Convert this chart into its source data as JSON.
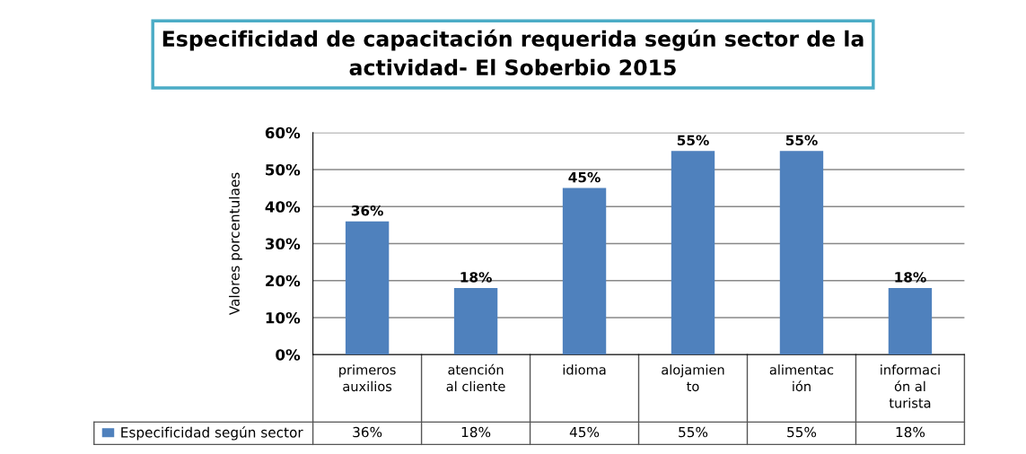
{
  "chart_data": {
    "type": "bar",
    "title": "Especificidad de capacitación requerida según sector de la\nactividad- El Soberbio 2015",
    "ylabel": "Valores porcentulaes",
    "categories": [
      "primeros\nauxilios",
      "atención\nal cliente",
      "idioma",
      "alojamien\nto",
      "alimentac\nión",
      "informaci\nón al\nturista"
    ],
    "series": [
      {
        "name": "Especificidad según sector",
        "color": "#4f81bd",
        "values": [
          36,
          18,
          45,
          55,
          55,
          18
        ],
        "value_labels": [
          "36%",
          "18%",
          "45%",
          "55%",
          "55%",
          "18%"
        ]
      }
    ],
    "ylim": [
      0,
      60
    ],
    "yticks": [
      {
        "value": 0,
        "label": "0%"
      },
      {
        "value": 10,
        "label": "10%"
      },
      {
        "value": 20,
        "label": "20%"
      },
      {
        "value": 30,
        "label": "30%"
      },
      {
        "value": 40,
        "label": "40%"
      },
      {
        "value": 50,
        "label": "50%"
      },
      {
        "value": 60,
        "label": "60%"
      }
    ],
    "grid": "y",
    "legend": "bottom"
  }
}
